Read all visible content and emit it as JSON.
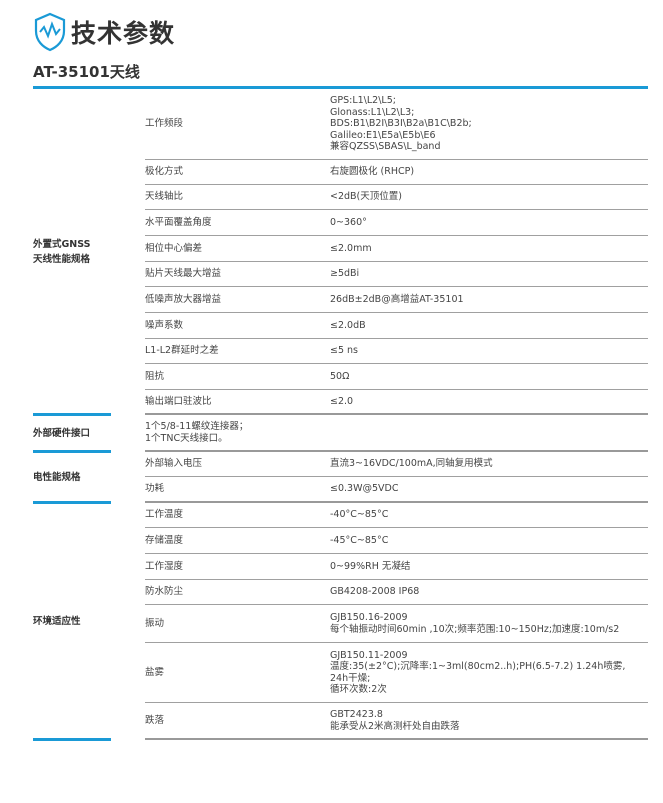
{
  "header": {
    "title": "技术参数",
    "icon": "shield-wave-icon",
    "accent": "#1a9ad6"
  },
  "subtitle": "AT-35101天线",
  "groups": [
    {
      "label": "外置式GNSS\n天线性能规格",
      "rows": [
        {
          "k": "工作频段",
          "v": "GPS:L1\\L2\\L5;\nGlonass:L1\\L2\\L3;\nBDS:B1\\B2I\\B3I\\B2a\\B1C\\B2b;\nGalileo:E1\\E5a\\E5b\\E6\n兼容QZSS\\SBAS\\L_band"
        },
        {
          "k": "极化方式",
          "v": "右旋圆极化 (RHCP)"
        },
        {
          "k": "天线轴比",
          "v": "<2dB(天顶位置)"
        },
        {
          "k": "水平面覆盖角度",
          "v": "0~360°"
        },
        {
          "k": "相位中心偏差",
          "v": "≤2.0mm"
        },
        {
          "k": "贴片天线最大增益",
          "v": "≥5dBi"
        },
        {
          "k": "低噪声放大器增益",
          "v": "26dB±2dB@高增益AT-35101"
        },
        {
          "k": "噪声系数",
          "v": "≤2.0dB"
        },
        {
          "k": "L1-L2群延时之差",
          "v": "≤5 ns"
        },
        {
          "k": "阻抗",
          "v": "50Ω"
        },
        {
          "k": "输出端口驻波比",
          "v": "≤2.0"
        }
      ]
    },
    {
      "label": "外部硬件接口",
      "rows": [
        {
          "k": "1个5/8-11螺纹连接器；\n1个TNC天线接口。",
          "v": ""
        }
      ]
    },
    {
      "label": "电性能规格",
      "rows": [
        {
          "k": "外部输入电压",
          "v": "直流3~16VDC/100mA,同轴复用模式"
        },
        {
          "k": "功耗",
          "v": "≤0.3W@5VDC"
        }
      ]
    },
    {
      "label": "环境适应性",
      "rows": [
        {
          "k": "工作温度",
          "v": "-40°C~85°C"
        },
        {
          "k": "存储温度",
          "v": "-45°C~85°C"
        },
        {
          "k": "工作湿度",
          "v": "0~99%RH 无凝结"
        },
        {
          "k": "防水防尘",
          "v": "GB4208-2008  IP68"
        },
        {
          "k": "振动",
          "v": "GJB150.16-2009\n每个轴振动时间60min ,10次;频率范围:10~150Hz;加速度:10m/s2"
        },
        {
          "k": "盐雾",
          "v": "GJB150.11-2009\n温度:35(±2°C);沉降率:1~3ml(80cm2..h);PH(6.5-7.2) 1.24h喷雾,\n24h干燥;\n循环次数:2次"
        },
        {
          "k": "跌落",
          "v": "GBT2423.8\n能承受从2米高测杆处自由跌落"
        }
      ]
    }
  ]
}
